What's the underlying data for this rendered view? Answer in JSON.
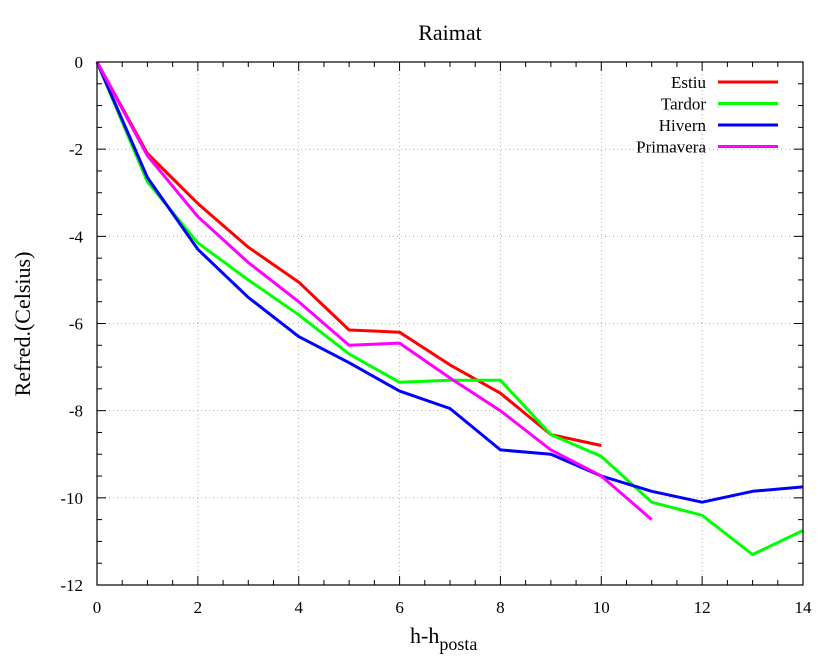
{
  "chart_data": {
    "type": "line",
    "title": "Raimat",
    "xlabel_main": "h-h",
    "xlabel_sub": "posta",
    "ylabel": "Refred.(Celsius)",
    "xlim": [
      0,
      14
    ],
    "ylim": [
      -12,
      0
    ],
    "xticks": [
      0,
      2,
      4,
      6,
      8,
      10,
      12,
      14
    ],
    "xtick_labels": [
      "0",
      "2",
      "4",
      "6",
      "8",
      "10",
      "12",
      "14"
    ],
    "yticks": [
      0,
      -2,
      -4,
      -6,
      -8,
      -10,
      -12
    ],
    "ytick_labels": [
      "0",
      "-2",
      "-4",
      "-6",
      "-8",
      "-10",
      "-12"
    ],
    "grid": true,
    "legend_position": "top-right",
    "series": [
      {
        "name": "Estiu",
        "color": "#ff0000",
        "x": [
          0,
          1,
          2,
          3,
          4,
          5,
          6,
          7,
          8,
          9,
          10
        ],
        "y": [
          0,
          -2.1,
          -3.25,
          -4.25,
          -5.05,
          -6.15,
          -6.2,
          -6.95,
          -7.6,
          -8.55,
          -8.8
        ]
      },
      {
        "name": "Tardor",
        "color": "#00ff00",
        "x": [
          0,
          1,
          2,
          3,
          4,
          5,
          6,
          7,
          8,
          9,
          10,
          11,
          12,
          13,
          14
        ],
        "y": [
          0,
          -2.75,
          -4.15,
          -5.0,
          -5.8,
          -6.7,
          -7.35,
          -7.3,
          -7.3,
          -8.55,
          -9.05,
          -10.1,
          -10.4,
          -11.3,
          -10.75
        ]
      },
      {
        "name": "Hivern",
        "color": "#0000ff",
        "x": [
          0,
          1,
          2,
          3,
          4,
          5,
          6,
          7,
          8,
          9,
          10,
          11,
          12,
          13,
          14
        ],
        "y": [
          0,
          -2.65,
          -4.3,
          -5.4,
          -6.3,
          -6.9,
          -7.55,
          -7.95,
          -8.9,
          -9.0,
          -9.5,
          -9.85,
          -10.1,
          -9.85,
          -9.75
        ]
      },
      {
        "name": "Primavera",
        "color": "#ff00ff",
        "x": [
          0,
          1,
          2,
          3,
          4,
          5,
          6,
          7,
          8,
          9,
          10,
          11
        ],
        "y": [
          0,
          -2.15,
          -3.55,
          -4.6,
          -5.5,
          -6.5,
          -6.45,
          -7.25,
          -8.0,
          -8.9,
          -9.5,
          -10.5
        ]
      }
    ]
  }
}
